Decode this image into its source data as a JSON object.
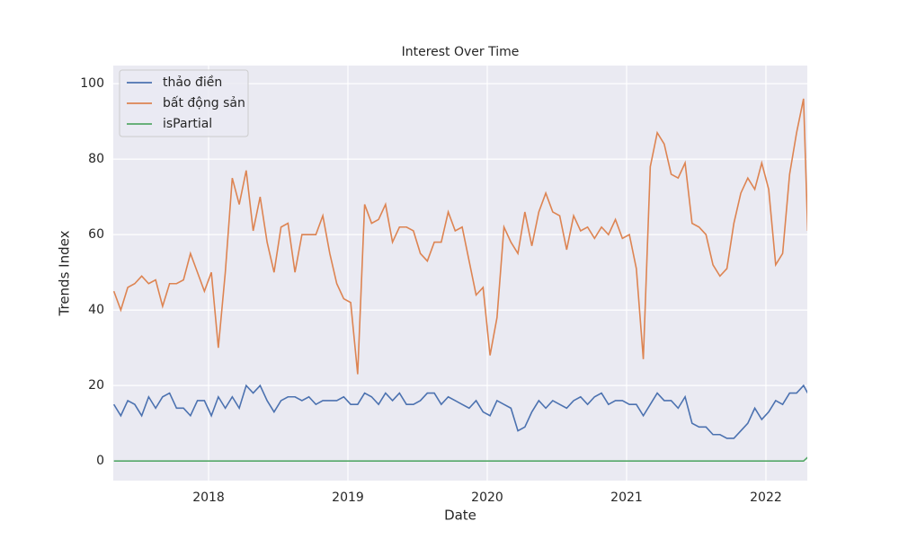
{
  "chart_data": {
    "type": "line",
    "title": "Interest Over Time",
    "x_label": "Date",
    "y_label": "Trends Index",
    "x": [
      2017.32,
      2017.37,
      2017.42,
      2017.47,
      2017.52,
      2017.57,
      2017.62,
      2017.67,
      2017.72,
      2017.77,
      2017.82,
      2017.87,
      2017.92,
      2017.97,
      2018.02,
      2018.07,
      2018.12,
      2018.17,
      2018.22,
      2018.27,
      2018.32,
      2018.37,
      2018.42,
      2018.47,
      2018.52,
      2018.57,
      2018.62,
      2018.67,
      2018.72,
      2018.77,
      2018.82,
      2018.87,
      2018.92,
      2018.97,
      2019.02,
      2019.07,
      2019.12,
      2019.17,
      2019.22,
      2019.27,
      2019.32,
      2019.37,
      2019.42,
      2019.47,
      2019.52,
      2019.57,
      2019.62,
      2019.67,
      2019.72,
      2019.77,
      2019.82,
      2019.87,
      2019.92,
      2019.97,
      2020.02,
      2020.07,
      2020.12,
      2020.17,
      2020.22,
      2020.27,
      2020.32,
      2020.37,
      2020.42,
      2020.47,
      2020.52,
      2020.57,
      2020.62,
      2020.67,
      2020.72,
      2020.77,
      2020.82,
      2020.87,
      2020.92,
      2020.97,
      2021.02,
      2021.07,
      2021.12,
      2021.17,
      2021.22,
      2021.27,
      2021.32,
      2021.37,
      2021.42,
      2021.47,
      2021.52,
      2021.57,
      2021.62,
      2021.67,
      2021.72,
      2021.77,
      2021.82,
      2021.87,
      2021.92,
      2021.97,
      2022.02,
      2022.07,
      2022.12,
      2022.17,
      2022.22,
      2022.27,
      2022.3
    ],
    "series": [
      {
        "name": "thảo điền",
        "color": "#4c72b0",
        "values": [
          15,
          12,
          16,
          15,
          12,
          17,
          14,
          17,
          18,
          14,
          14,
          12,
          16,
          16,
          12,
          17,
          14,
          17,
          14,
          20,
          18,
          20,
          16,
          13,
          16,
          17,
          17,
          16,
          17,
          15,
          16,
          16,
          16,
          17,
          15,
          15,
          18,
          17,
          15,
          18,
          16,
          18,
          15,
          15,
          16,
          18,
          18,
          15,
          17,
          16,
          15,
          14,
          16,
          13,
          12,
          16,
          15,
          14,
          8,
          9,
          13,
          16,
          14,
          16,
          15,
          14,
          16,
          17,
          15,
          17,
          18,
          15,
          16,
          16,
          15,
          15,
          12,
          15,
          18,
          16,
          16,
          14,
          17,
          10,
          9,
          9,
          7,
          7,
          6,
          6,
          8,
          10,
          14,
          11,
          13,
          16,
          15,
          18,
          18,
          20,
          18
        ]
      },
      {
        "name": "bất động sản",
        "color": "#dd8452",
        "values": [
          45,
          40,
          46,
          47,
          49,
          47,
          48,
          41,
          47,
          47,
          48,
          55,
          50,
          45,
          50,
          30,
          50,
          75,
          68,
          77,
          61,
          70,
          58,
          50,
          62,
          63,
          50,
          60,
          60,
          60,
          65,
          55,
          47,
          43,
          42,
          23,
          68,
          63,
          64,
          68,
          58,
          62,
          62,
          61,
          55,
          53,
          58,
          58,
          66,
          61,
          62,
          53,
          44,
          46,
          28,
          38,
          62,
          58,
          55,
          66,
          57,
          66,
          71,
          66,
          65,
          56,
          65,
          61,
          62,
          59,
          62,
          60,
          64,
          59,
          60,
          51,
          27,
          78,
          87,
          84,
          76,
          75,
          79,
          63,
          62,
          60,
          52,
          49,
          51,
          63,
          71,
          75,
          72,
          79,
          72,
          52,
          55,
          76,
          87,
          96,
          61
        ]
      },
      {
        "name": "isPartial",
        "color": "#55a868",
        "values": [
          0,
          0,
          0,
          0,
          0,
          0,
          0,
          0,
          0,
          0,
          0,
          0,
          0,
          0,
          0,
          0,
          0,
          0,
          0,
          0,
          0,
          0,
          0,
          0,
          0,
          0,
          0,
          0,
          0,
          0,
          0,
          0,
          0,
          0,
          0,
          0,
          0,
          0,
          0,
          0,
          0,
          0,
          0,
          0,
          0,
          0,
          0,
          0,
          0,
          0,
          0,
          0,
          0,
          0,
          0,
          0,
          0,
          0,
          0,
          0,
          0,
          0,
          0,
          0,
          0,
          0,
          0,
          0,
          0,
          0,
          0,
          0,
          0,
          0,
          0,
          0,
          0,
          0,
          0,
          0,
          0,
          0,
          0,
          0,
          0,
          0,
          0,
          0,
          0,
          0,
          0,
          0,
          0,
          0,
          0,
          0,
          0,
          0,
          0,
          0,
          1
        ]
      }
    ],
    "xlim": [
      2017.316,
      2022.297
    ],
    "xticks": [
      2018,
      2019,
      2020,
      2021,
      2022
    ],
    "ylim": [
      -5.2,
      104.8
    ],
    "yticks": [
      0,
      20,
      40,
      60,
      80,
      100
    ],
    "grid": true,
    "legend": "upper left"
  }
}
